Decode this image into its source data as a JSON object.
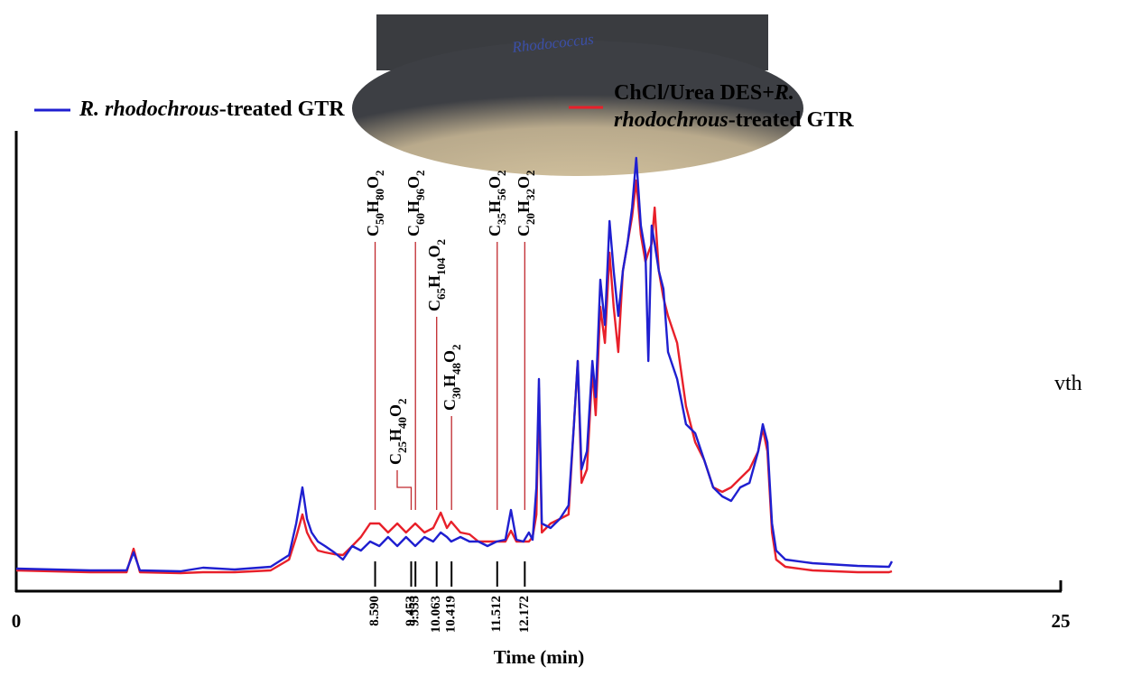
{
  "chart_data": {
    "type": "line",
    "photo_label": "Rhodococcus",
    "side_text": "vth",
    "x_label": "Time (min)",
    "xlim": [
      0,
      25
    ],
    "xticks": [
      0,
      25
    ],
    "ylim": [
      0,
      505
    ],
    "x": [
      0,
      1.77,
      2.64,
      2.81,
      2.96,
      3.93,
      4.47,
      5.23,
      6.09,
      6.53,
      6.7,
      6.85,
      6.96,
      7.07,
      7.22,
      7.39,
      7.61,
      7.82,
      8.04,
      8.25,
      8.47,
      8.69,
      8.9,
      9.12,
      9.33,
      9.55,
      9.77,
      9.98,
      10.16,
      10.31,
      10.41,
      10.63,
      10.85,
      11.06,
      11.28,
      11.5,
      11.71,
      11.84,
      11.97,
      12.14,
      12.27,
      12.36,
      12.45,
      12.51,
      12.58,
      12.79,
      13.01,
      13.22,
      13.35,
      13.44,
      13.53,
      13.66,
      13.79,
      13.87,
      13.98,
      14.09,
      14.2,
      14.3,
      14.41,
      14.52,
      14.63,
      14.74,
      14.84,
      14.95,
      15.06,
      15.13,
      15.21,
      15.28,
      15.38,
      15.49,
      15.6,
      15.82,
      16.03,
      16.25,
      16.47,
      16.68,
      16.9,
      17.11,
      17.33,
      17.55,
      17.76,
      17.87,
      17.98,
      18.09,
      18.19,
      18.41,
      19.06,
      20.14,
      20.89,
      20.96
    ],
    "series": [
      {
        "name": "R. rhodochrous-treated GTR",
        "color": "#1f1fd0",
        "values": [
          25,
          23,
          23,
          43,
          23,
          22,
          26,
          24,
          27,
          40,
          75,
          115,
          80,
          65,
          55,
          50,
          43,
          35,
          50,
          45,
          55,
          50,
          60,
          50,
          60,
          50,
          60,
          55,
          65,
          60,
          55,
          60,
          55,
          55,
          50,
          55,
          57,
          90,
          57,
          55,
          65,
          57,
          115,
          235,
          75,
          70,
          80,
          95,
          185,
          255,
          135,
          155,
          255,
          215,
          345,
          295,
          410,
          355,
          305,
          355,
          385,
          425,
          480,
          405,
          375,
          255,
          405,
          385,
          355,
          335,
          265,
          235,
          185,
          175,
          145,
          115,
          105,
          100,
          115,
          120,
          155,
          185,
          165,
          75,
          45,
          35,
          31,
          28,
          27,
          33
        ]
      },
      {
        "name": "ChCl/Urea DES+R. rhodochrous-treated GTR",
        "color": "#e8202a",
        "values": [
          23,
          21,
          21,
          47,
          21,
          20,
          21,
          21,
          23,
          35,
          60,
          85,
          65,
          55,
          45,
          43,
          41,
          40,
          50,
          60,
          75,
          75,
          65,
          75,
          65,
          75,
          65,
          70,
          87,
          70,
          77,
          65,
          63,
          55,
          55,
          55,
          55,
          67,
          55,
          55,
          55,
          60,
          85,
          225,
          65,
          75,
          80,
          85,
          185,
          255,
          120,
          135,
          245,
          195,
          315,
          275,
          375,
          315,
          265,
          355,
          385,
          415,
          455,
          395,
          365,
          375,
          385,
          425,
          355,
          325,
          305,
          275,
          205,
          165,
          145,
          115,
          110,
          115,
          125,
          135,
          155,
          180,
          155,
          65,
          35,
          27,
          23,
          21,
          21,
          22
        ]
      }
    ],
    "annotations": [
      {
        "label": "C50H80O2",
        "x": {
          "value": 8.59,
          "label": "8.590"
        }
      },
      {
        "label": "C25H40O2",
        "x": {
          "value": 9.453,
          "label": "9.453"
        }
      },
      {
        "label": "C60H96O2",
        "x": {
          "value": 9.555,
          "label": "9.555"
        }
      },
      {
        "label": "C65H104O2",
        "x": {
          "value": 10.063,
          "label": "10.063"
        }
      },
      {
        "label": "C30H48O2",
        "x": {
          "value": 10.419,
          "label": "10.419"
        }
      },
      {
        "label": "C35H56O2",
        "x": {
          "value": 11.512,
          "label": "11.512"
        }
      },
      {
        "label": "C20H32O2",
        "x": {
          "value": 12.172,
          "label": "12.172"
        }
      }
    ]
  }
}
